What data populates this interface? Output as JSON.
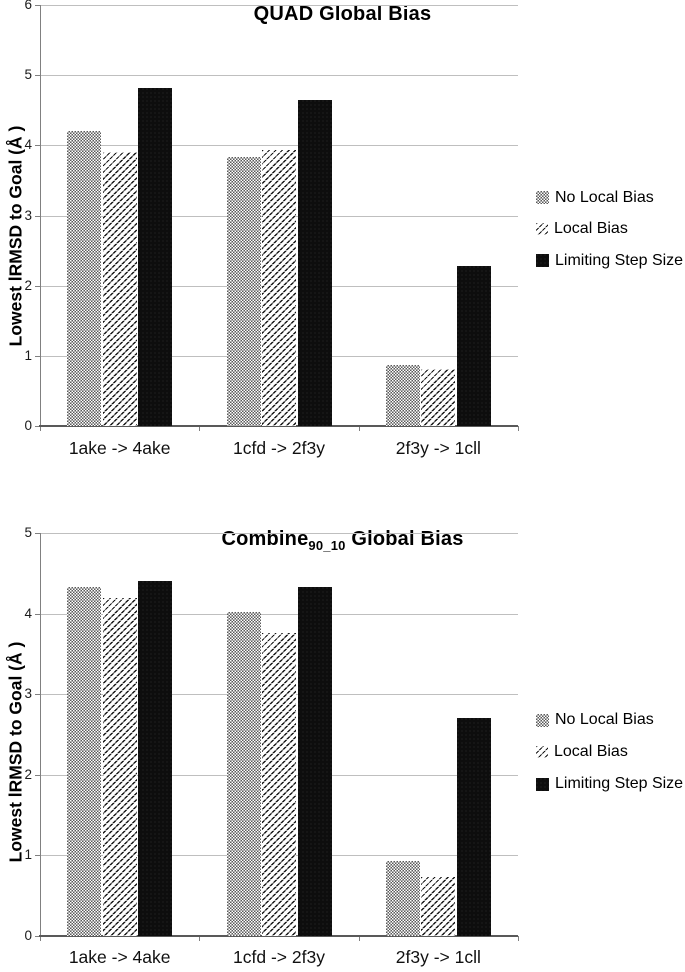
{
  "colors": {
    "grid": "#bfbfbf",
    "axis": "#808080",
    "baseline": "#595959",
    "bar_gray": "#5a5a5a",
    "bar_black": "#0d0d0d",
    "text": "#000000"
  },
  "chart_data": [
    {
      "type": "bar",
      "title_main": "QUAD",
      "title_sub": "",
      "title_rest": " Global Bias",
      "title_full": "QUAD Global Bias",
      "xlabel": "",
      "ylabel": "Lowest lRMSD to Goal (Å )",
      "ylim": [
        0,
        6
      ],
      "yticks": [
        "0",
        "1",
        "2",
        "3",
        "4",
        "5",
        "6"
      ],
      "grid": true,
      "legend_position": "right",
      "categories": [
        "1ake -> 4ake",
        "1cfd -> 2f3y",
        "2f3y -> 1cll"
      ],
      "series": [
        {
          "name": "No Local Bias",
          "pattern": "checker",
          "values": [
            4.2,
            3.83,
            0.87
          ]
        },
        {
          "name": "Local Bias",
          "pattern": "hatch",
          "values": [
            3.9,
            3.93,
            0.81
          ]
        },
        {
          "name": "Limiting Step Size",
          "pattern": "solid",
          "values": [
            4.82,
            4.65,
            2.28
          ]
        }
      ]
    },
    {
      "type": "bar",
      "title_main": "Combine",
      "title_sub": "90_10",
      "title_rest": " Global Bias",
      "title_full": "Combine90_10 Global Bias",
      "xlabel": "",
      "ylabel": "Lowest lRMSD to Goal (Å )",
      "ylim": [
        0,
        5
      ],
      "yticks": [
        "0",
        "1",
        "2",
        "3",
        "4",
        "5"
      ],
      "grid": true,
      "legend_position": "right",
      "categories": [
        "1ake -> 4ake",
        "1cfd -> 2f3y",
        "2f3y -> 1cll"
      ],
      "series": [
        {
          "name": "No Local Bias",
          "pattern": "checker",
          "values": [
            4.33,
            4.02,
            0.93
          ]
        },
        {
          "name": "Local Bias",
          "pattern": "hatch",
          "values": [
            4.19,
            3.76,
            0.73
          ]
        },
        {
          "name": "Limiting Step Size",
          "pattern": "solid",
          "values": [
            4.4,
            4.33,
            2.7
          ]
        }
      ]
    }
  ]
}
